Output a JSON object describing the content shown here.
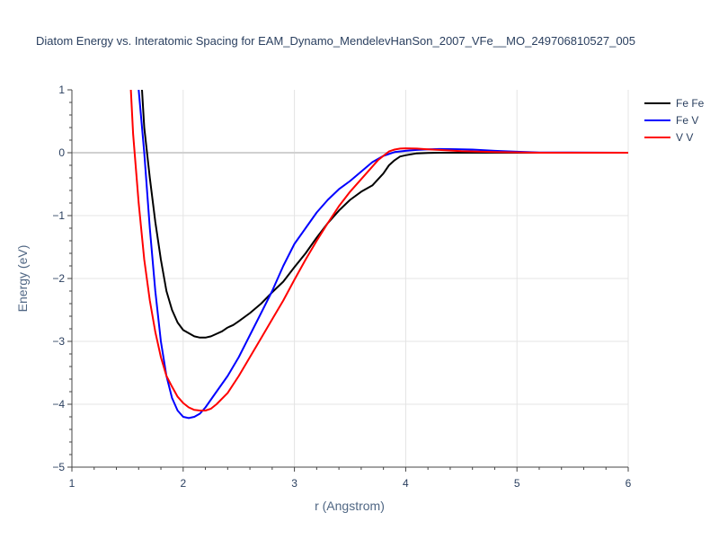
{
  "chart_data": {
    "type": "line",
    "title": "Diatom Energy vs. Interatomic Spacing for EAM_Dynamo_MendelevHanSon_2007_VFe__MO_249706810527_005",
    "xlabel": "r (Angstrom)",
    "ylabel": "Energy (eV)",
    "xlim": [
      1,
      6
    ],
    "ylim": [
      -5,
      1
    ],
    "xticks": [
      "1",
      "2",
      "3",
      "4",
      "5",
      "6"
    ],
    "yticks": [
      "1",
      "0",
      "−1",
      "−2",
      "−3",
      "−4",
      "−5"
    ],
    "grid": true,
    "legend_position": "top-right",
    "series": [
      {
        "name": "Fe Fe",
        "color": "#000000",
        "x": [
          1.63,
          1.65,
          1.7,
          1.75,
          1.8,
          1.85,
          1.9,
          1.95,
          2.0,
          2.05,
          2.1,
          2.15,
          2.2,
          2.25,
          2.3,
          2.35,
          2.4,
          2.45,
          2.5,
          2.6,
          2.7,
          2.8,
          2.9,
          3.0,
          3.1,
          3.2,
          3.3,
          3.4,
          3.5,
          3.6,
          3.7,
          3.8,
          3.85,
          3.9,
          3.95,
          4.0,
          4.1,
          4.2,
          4.3,
          4.5,
          5.0,
          6.0
        ],
        "y": [
          1.0,
          0.4,
          -0.4,
          -1.1,
          -1.7,
          -2.2,
          -2.5,
          -2.7,
          -2.82,
          -2.87,
          -2.92,
          -2.94,
          -2.94,
          -2.92,
          -2.88,
          -2.84,
          -2.78,
          -2.74,
          -2.68,
          -2.55,
          -2.4,
          -2.22,
          -2.05,
          -1.82,
          -1.6,
          -1.35,
          -1.12,
          -0.92,
          -0.75,
          -0.62,
          -0.52,
          -0.33,
          -0.2,
          -0.12,
          -0.06,
          -0.04,
          -0.01,
          -0.005,
          0.0,
          0.0,
          0.0,
          0.0
        ]
      },
      {
        "name": "Fe V",
        "color": "#0000ff",
        "x": [
          1.6,
          1.65,
          1.7,
          1.75,
          1.8,
          1.85,
          1.9,
          1.95,
          2.0,
          2.05,
          2.1,
          2.15,
          2.2,
          2.3,
          2.4,
          2.5,
          2.6,
          2.7,
          2.8,
          2.9,
          3.0,
          3.1,
          3.2,
          3.3,
          3.4,
          3.5,
          3.6,
          3.7,
          3.8,
          3.9,
          4.0,
          4.1,
          4.2,
          4.3,
          4.4,
          4.6,
          4.8,
          5.0,
          5.2,
          6.0
        ],
        "y": [
          1.0,
          0.0,
          -1.2,
          -2.2,
          -3.0,
          -3.55,
          -3.9,
          -4.1,
          -4.2,
          -4.22,
          -4.2,
          -4.15,
          -4.05,
          -3.8,
          -3.55,
          -3.25,
          -2.9,
          -2.55,
          -2.2,
          -1.8,
          -1.45,
          -1.2,
          -0.95,
          -0.75,
          -0.58,
          -0.45,
          -0.3,
          -0.15,
          -0.05,
          0.01,
          0.03,
          0.045,
          0.055,
          0.058,
          0.057,
          0.05,
          0.03,
          0.015,
          0.005,
          0.0
        ]
      },
      {
        "name": "V V",
        "color": "#ff0000",
        "x": [
          1.53,
          1.55,
          1.6,
          1.65,
          1.7,
          1.75,
          1.8,
          1.85,
          1.9,
          1.95,
          2.0,
          2.05,
          2.1,
          2.15,
          2.2,
          2.25,
          2.3,
          2.4,
          2.5,
          2.6,
          2.7,
          2.8,
          2.9,
          3.0,
          3.1,
          3.2,
          3.3,
          3.4,
          3.5,
          3.6,
          3.7,
          3.75,
          3.8,
          3.85,
          3.9,
          3.95,
          4.0,
          4.1,
          4.2,
          4.3,
          4.5,
          4.8,
          5.2,
          6.0
        ],
        "y": [
          1.0,
          0.3,
          -0.8,
          -1.7,
          -2.35,
          -2.85,
          -3.25,
          -3.55,
          -3.72,
          -3.88,
          -3.98,
          -4.05,
          -4.09,
          -4.1,
          -4.1,
          -4.07,
          -4.0,
          -3.82,
          -3.55,
          -3.25,
          -2.95,
          -2.65,
          -2.35,
          -2.02,
          -1.7,
          -1.4,
          -1.12,
          -0.85,
          -0.62,
          -0.42,
          -0.22,
          -0.12,
          -0.05,
          0.02,
          0.05,
          0.065,
          0.07,
          0.065,
          0.055,
          0.045,
          0.025,
          0.01,
          0.0,
          0.0
        ]
      }
    ]
  }
}
